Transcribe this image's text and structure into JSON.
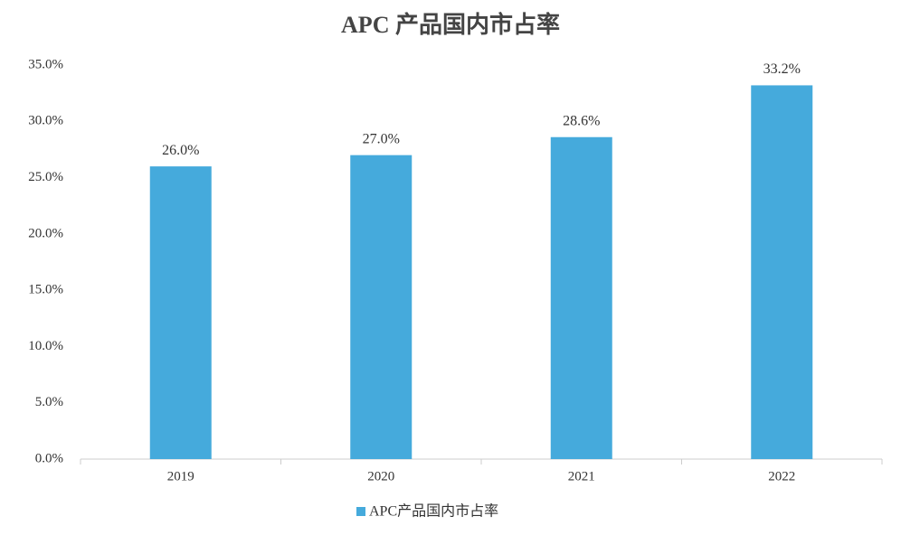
{
  "chart_data": {
    "type": "bar",
    "title": "APC 产品国内市占率",
    "categories": [
      "2019",
      "2020",
      "2021",
      "2022"
    ],
    "series": [
      {
        "name": "APC产品国内市占率",
        "color": "#45aadc",
        "values": [
          26.0,
          27.0,
          28.6,
          33.2
        ],
        "value_labels": [
          "26.0%",
          "27.0%",
          "28.6%",
          "33.2%"
        ]
      }
    ],
    "ylim": [
      0,
      35
    ],
    "yticks": [
      {
        "value": 0,
        "label": "0.0%"
      },
      {
        "value": 5,
        "label": "5.0%"
      },
      {
        "value": 10,
        "label": "10.0%"
      },
      {
        "value": 15,
        "label": "15.0%"
      },
      {
        "value": 20,
        "label": "20.0%"
      },
      {
        "value": 25,
        "label": "25.0%"
      },
      {
        "value": 30,
        "label": "30.0%"
      },
      {
        "value": 35,
        "label": "35.0%"
      }
    ],
    "grid": false,
    "legend": "bottom"
  }
}
